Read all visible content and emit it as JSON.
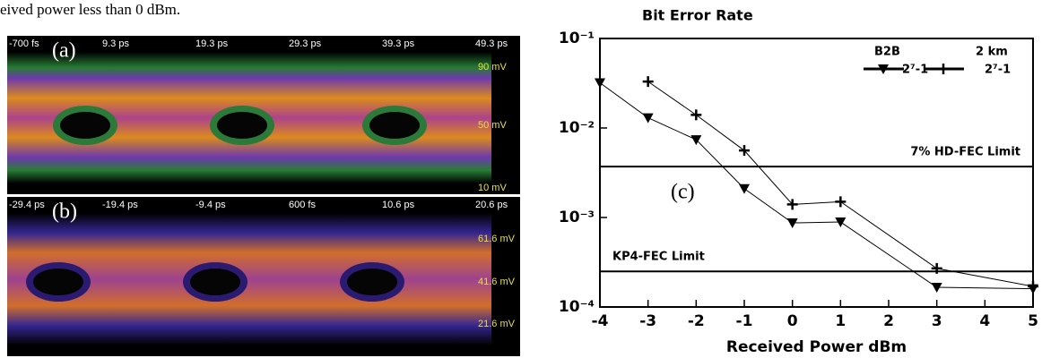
{
  "text_fragment": "eived power less than 0 dBm.",
  "eye_diagrams": [
    {
      "label": "(a)",
      "time_labels": [
        "-700 fs",
        "9.3 ps",
        "19.3 ps",
        "29.3 ps",
        "39.3 ps",
        "49.3 ps"
      ],
      "voltage_labels": [
        "90 mV",
        "50 mV",
        "10 mV"
      ]
    },
    {
      "label": "(b)",
      "time_labels": [
        "-29.4 ps",
        "-19.4 ps",
        "-9.4 ps",
        "600 fs",
        "10.6 ps",
        "20.6 ps"
      ],
      "voltage_labels": [
        "61.6 mV",
        "41.6 mV",
        "21.6 mV"
      ]
    }
  ],
  "chart_data": {
    "type": "line",
    "title": "Bit Error Rate",
    "x_label": "Received Power dBm",
    "panel_label": "(c)",
    "log_y": true,
    "x": [
      -4,
      -3,
      -2,
      -1,
      0,
      1,
      3,
      5
    ],
    "series": [
      {
        "name": "2⁷-1",
        "group": "B2B",
        "marker": "triangle",
        "color": "#000000",
        "values": [
          0.032,
          0.013,
          0.0074,
          0.0021,
          0.00087,
          0.00089,
          0.000166,
          0.00016
        ]
      },
      {
        "name": "2⁷-1",
        "group": "2 km",
        "marker": "plus",
        "color": "#000000",
        "values": [
          null,
          0.033,
          0.014,
          0.0056,
          0.0014,
          0.0015,
          0.00027,
          0.00017
        ]
      }
    ],
    "limits": [
      {
        "label": "7% HD-FEC Limit",
        "value": 0.0037
      },
      {
        "label": "KP4-FEC Limit",
        "value": 0.00025
      }
    ],
    "xlim": [
      -4,
      5
    ],
    "xticks": [
      -4,
      -3,
      -2,
      -1,
      0,
      1,
      2,
      3,
      4,
      5
    ],
    "ylim": [
      0.0001,
      0.1
    ],
    "yticks": [
      {
        "value": 0.1,
        "label": "10⁻¹"
      },
      {
        "value": 0.01,
        "label": "10⁻²"
      },
      {
        "value": 0.001,
        "label": "10⁻³"
      },
      {
        "value": 0.0001,
        "label": "10⁻⁴"
      }
    ]
  }
}
